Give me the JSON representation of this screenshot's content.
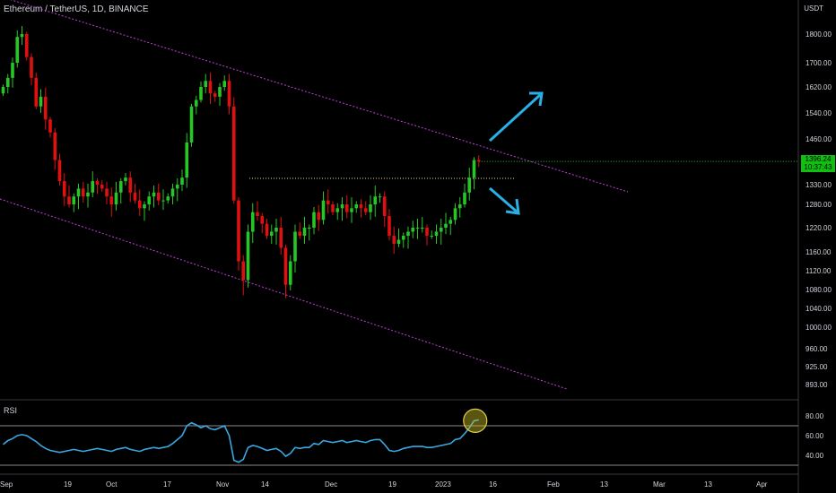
{
  "header": {
    "title": "Ethereum / TetherUS, 1D, BINANCE",
    "currency": "USDT"
  },
  "rsi": {
    "label": "RSI"
  },
  "price_tag": {
    "price": "1396.24",
    "countdown": "10:37:43"
  },
  "colors": {
    "up": "#26c626",
    "down": "#e01010",
    "channel": "#c040d8",
    "rsi_line": "#3aa8e0",
    "arrow": "#2ab0e6",
    "level": "#e6e070",
    "highlight": "#e0d040"
  },
  "chart_data": [
    {
      "type": "candlestick",
      "title": "Ethereum / TetherUS, 1D, BINANCE",
      "ylabel": "USDT",
      "y_axis_ticks": [
        "1800.00",
        "1700.00",
        "1620.00",
        "1540.00",
        "1460.00",
        "1330.00",
        "1280.00",
        "1220.00",
        "1160.00",
        "1120.00",
        "1080.00",
        "1040.00",
        "1000.00",
        "960.00",
        "925.00",
        "893.00"
      ],
      "x_axis_ticks": [
        "Sep",
        "19",
        "Oct",
        "17",
        "Nov",
        "14",
        "Dec",
        "19",
        "2023",
        "16",
        "Feb",
        "13",
        "Mar",
        "13",
        "Apr"
      ],
      "close_series": [
        1620,
        1650,
        1700,
        1790,
        1800,
        1720,
        1650,
        1560,
        1590,
        1520,
        1480,
        1400,
        1340,
        1300,
        1280,
        1300,
        1320,
        1300,
        1310,
        1340,
        1330,
        1320,
        1300,
        1280,
        1310,
        1340,
        1350,
        1310,
        1290,
        1270,
        1280,
        1300,
        1310,
        1290,
        1290,
        1300,
        1320,
        1330,
        1350,
        1450,
        1560,
        1580,
        1620,
        1640,
        1600,
        1590,
        1620,
        1640,
        1560,
        1290,
        1140,
        1100,
        1210,
        1260,
        1250,
        1230,
        1200,
        1210,
        1220,
        1170,
        1090,
        1140,
        1210,
        1200,
        1220,
        1220,
        1260,
        1240,
        1290,
        1280,
        1260,
        1270,
        1280,
        1260,
        1270,
        1280,
        1270,
        1260,
        1280,
        1300,
        1300,
        1250,
        1200,
        1180,
        1190,
        1200,
        1210,
        1220,
        1220,
        1220,
        1200,
        1200,
        1210,
        1220,
        1230,
        1240,
        1270,
        1280,
        1310,
        1350,
        1400,
        1396
      ],
      "annotations": [
        "descending channel upper line",
        "descending channel lower line",
        "dotted horizontal level near 1345",
        "arrow up-right",
        "arrow down-right"
      ]
    },
    {
      "type": "line",
      "title": "RSI",
      "y_axis_ticks": [
        "80.00",
        "60.00",
        "40.00"
      ],
      "ylim": [
        25,
        85
      ],
      "values": [
        51,
        55,
        57,
        60,
        61,
        60,
        57,
        54,
        50,
        47,
        45,
        44,
        43,
        44,
        45,
        46,
        45,
        44,
        45,
        46,
        47,
        46,
        45,
        44,
        46,
        47,
        48,
        46,
        45,
        44,
        46,
        47,
        48,
        47,
        48,
        49,
        52,
        56,
        60,
        70,
        73,
        71,
        68,
        70,
        67,
        66,
        68,
        70,
        60,
        35,
        33,
        36,
        48,
        50,
        49,
        47,
        45,
        46,
        47,
        44,
        39,
        42,
        48,
        47,
        48,
        48,
        52,
        51,
        55,
        54,
        53,
        54,
        55,
        53,
        54,
        55,
        54,
        53,
        55,
        56,
        56,
        51,
        45,
        44,
        45,
        47,
        48,
        49,
        49,
        49,
        48,
        48,
        49,
        50,
        51,
        52,
        56,
        57,
        62,
        68,
        75,
        76
      ]
    }
  ]
}
